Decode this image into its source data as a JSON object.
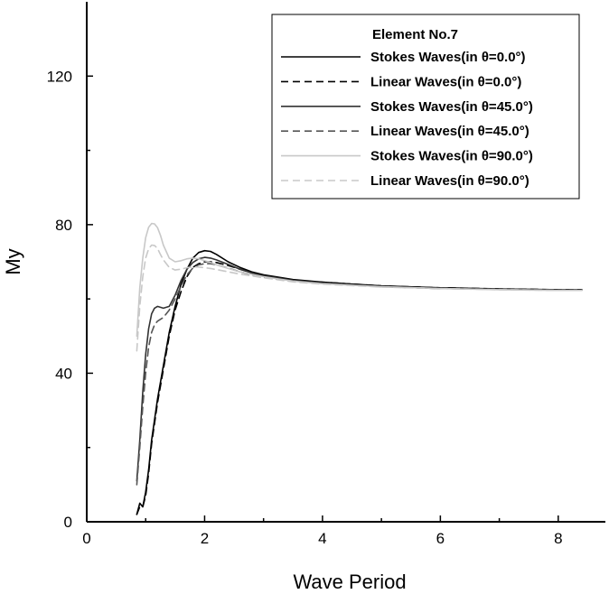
{
  "chart_data": {
    "type": "line",
    "title": "",
    "xlabel": "Wave Period",
    "ylabel": "My",
    "xlim": [
      0,
      8.8
    ],
    "ylim": [
      0,
      140
    ],
    "x_ticks": [
      "0",
      "2",
      "4",
      "6",
      "8"
    ],
    "y_ticks": [
      "0",
      "40",
      "80",
      "120"
    ],
    "legend": {
      "title": "Element No.7",
      "position": "top-right"
    },
    "series": [
      {
        "name": "Stokes Waves(in θ=0.0°)",
        "color": "#000000",
        "dash": "solid",
        "x": [
          0.85,
          0.9,
          0.95,
          1.0,
          1.05,
          1.1,
          1.2,
          1.3,
          1.4,
          1.5,
          1.6,
          1.7,
          1.8,
          1.9,
          2.0,
          2.1,
          2.2,
          2.4,
          2.6,
          2.8,
          3.0,
          3.5,
          4.0,
          5.0,
          6.0,
          7.0,
          8.0,
          8.4
        ],
        "y": [
          2,
          5,
          4,
          8,
          14,
          22,
          33,
          42,
          51,
          58,
          64,
          68,
          71,
          72.5,
          73,
          72.8,
          72,
          70,
          68.5,
          67.3,
          66.5,
          65.2,
          64.5,
          63.5,
          63,
          62.7,
          62.5,
          62.5
        ]
      },
      {
        "name": "Linear Waves(in θ=0.0°)",
        "color": "#000000",
        "dash": "dashed",
        "x": [
          0.85,
          0.9,
          0.95,
          1.0,
          1.05,
          1.1,
          1.2,
          1.3,
          1.4,
          1.5,
          1.6,
          1.7,
          1.8,
          1.9,
          2.0,
          2.1,
          2.2,
          2.4,
          2.6,
          2.8,
          3.0,
          3.5,
          4.0,
          5.0,
          6.0,
          7.0,
          8.0,
          8.4
        ],
        "y": [
          2,
          4,
          4,
          7,
          13,
          21,
          32,
          41,
          50,
          57,
          62,
          66,
          68.5,
          69.5,
          70,
          70,
          69.8,
          69,
          68,
          67,
          66.2,
          65,
          64.5,
          63.5,
          63,
          62.7,
          62.5,
          62.5
        ]
      },
      {
        "name": "Stokes Waves(in θ=45.0°)",
        "color": "#333333",
        "dash": "solid",
        "x": [
          0.85,
          0.9,
          0.95,
          1.0,
          1.05,
          1.1,
          1.15,
          1.2,
          1.3,
          1.4,
          1.5,
          1.6,
          1.7,
          1.8,
          1.9,
          2.0,
          2.1,
          2.2,
          2.4,
          2.6,
          2.8,
          3.0,
          3.5,
          4.0,
          5.0,
          6.0,
          7.0,
          8.0,
          8.4
        ],
        "y": [
          11,
          22,
          35,
          45,
          52,
          56,
          57.5,
          58,
          57.5,
          58,
          61,
          65,
          68,
          69.8,
          70.8,
          71.2,
          71,
          70.5,
          69.3,
          68,
          67,
          66.2,
          65,
          64.3,
          63.3,
          62.8,
          62.6,
          62.4,
          62.4
        ]
      },
      {
        "name": "Linear Waves(in θ=45.0°)",
        "color": "#555555",
        "dash": "dashed",
        "x": [
          0.85,
          0.9,
          0.95,
          1.0,
          1.05,
          1.1,
          1.15,
          1.2,
          1.3,
          1.4,
          1.5,
          1.6,
          1.7,
          1.8,
          1.9,
          2.0,
          2.1,
          2.2,
          2.4,
          2.6,
          2.8,
          3.0,
          3.5,
          4.0,
          5.0,
          6.0,
          7.0,
          8.0,
          8.4
        ],
        "y": [
          10,
          20,
          31,
          40,
          47,
          51,
          53,
          54,
          55,
          57,
          60,
          63.5,
          66.5,
          68.3,
          69.2,
          69.5,
          69.5,
          69.2,
          68.3,
          67.3,
          66.5,
          65.8,
          64.8,
          64.2,
          63.3,
          62.8,
          62.6,
          62.4,
          62.4
        ]
      },
      {
        "name": "Stokes Waves(in θ=90.0°)",
        "color": "#c8c8c8",
        "dash": "solid",
        "x": [
          0.85,
          0.9,
          0.95,
          1.0,
          1.05,
          1.1,
          1.15,
          1.2,
          1.25,
          1.3,
          1.4,
          1.5,
          1.6,
          1.7,
          1.8,
          1.9,
          2.0,
          2.1,
          2.2,
          2.4,
          2.6,
          2.8,
          3.0,
          3.5,
          4.0,
          5.0,
          6.0,
          7.0,
          8.0,
          8.4
        ],
        "y": [
          50,
          63,
          71,
          76.5,
          79.3,
          80.3,
          80.2,
          79.2,
          77.2,
          74.5,
          71,
          70,
          70.3,
          70.8,
          71,
          70.8,
          70.3,
          69.8,
          69.2,
          68.2,
          67.3,
          66.6,
          66,
          64.8,
          64.1,
          63.3,
          62.8,
          62.5,
          62.3,
          62.3
        ]
      },
      {
        "name": "Linear Waves(in θ=90.0°)",
        "color": "#c8c8c8",
        "dash": "dashed",
        "x": [
          0.85,
          0.9,
          0.95,
          1.0,
          1.05,
          1.1,
          1.15,
          1.2,
          1.25,
          1.3,
          1.4,
          1.5,
          1.6,
          1.7,
          1.8,
          1.9,
          2.0,
          2.1,
          2.2,
          2.4,
          2.6,
          2.8,
          3.0,
          3.5,
          4.0,
          5.0,
          6.0,
          7.0,
          8.0,
          8.4
        ],
        "y": [
          46,
          58,
          66,
          71,
          73.5,
          74.5,
          74.4,
          73.6,
          72,
          70.5,
          68.5,
          67.8,
          68,
          68.4,
          68.6,
          68.6,
          68.4,
          68.2,
          67.9,
          67.3,
          66.7,
          66.2,
          65.7,
          64.6,
          64,
          63.2,
          62.8,
          62.5,
          62.3,
          62.3
        ]
      }
    ]
  }
}
